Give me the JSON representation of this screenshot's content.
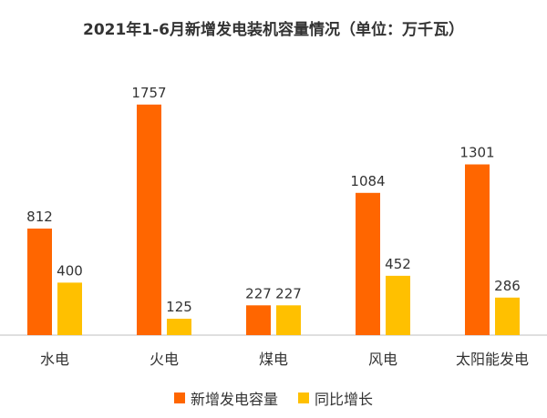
{
  "chart_data": {
    "type": "bar",
    "title": "2021年1-6月新增发电装机容量情况（单位：万千瓦）",
    "categories": [
      "水电",
      "火电",
      "煤电",
      "风电",
      "太阳能发电"
    ],
    "series": [
      {
        "name": "新增发电容量",
        "color": "#FF6600",
        "values": [
          812,
          1757,
          227,
          1084,
          1301
        ]
      },
      {
        "name": "同比增长",
        "color": "#FFC000",
        "values": [
          400,
          125,
          227,
          452,
          286
        ]
      }
    ],
    "ylim": [
      0,
      1950
    ],
    "grid": false,
    "legend": "bottom-center",
    "data_labels": true,
    "xlabel": "",
    "ylabel": ""
  }
}
